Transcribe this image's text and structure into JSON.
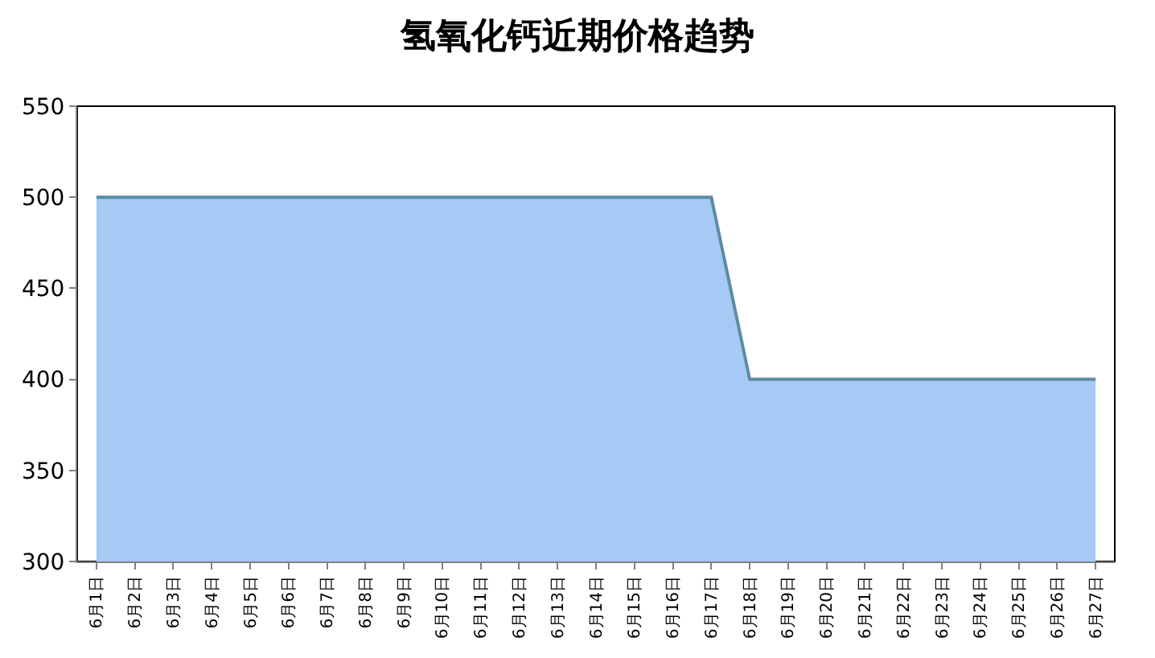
{
  "chart_data": {
    "type": "area",
    "title": "氢氧化钙近期价格趋势",
    "categories": [
      "6月1日",
      "6月2日",
      "6月3日",
      "6月4日",
      "6月5日",
      "6月6日",
      "6月7日",
      "6月8日",
      "6月9日",
      "6月10日",
      "6月11日",
      "6月12日",
      "6月13日",
      "6月14日",
      "6月15日",
      "6月16日",
      "6月17日",
      "6月18日",
      "6月19日",
      "6月20日",
      "6月21日",
      "6月22日",
      "6月23日",
      "6月24日",
      "6月25日",
      "6月26日",
      "6月27日"
    ],
    "values": [
      500,
      500,
      500,
      500,
      500,
      500,
      500,
      500,
      500,
      500,
      500,
      500,
      500,
      500,
      500,
      500,
      500,
      400,
      400,
      400,
      400,
      400,
      400,
      400,
      400,
      400,
      400
    ],
    "color": "#5a8ca5",
    "ylim": [
      300,
      550
    ],
    "yticks": [
      300,
      350,
      400,
      450,
      500,
      550
    ]
  }
}
